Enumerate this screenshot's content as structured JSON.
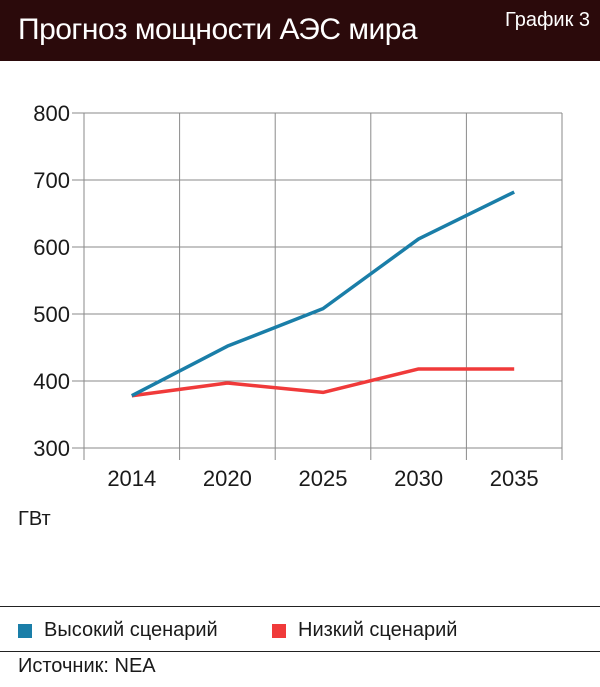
{
  "header": {
    "title": "Прогноз мощности АЭС мира",
    "chart_number": "График 3"
  },
  "unit_label": "ГВт",
  "source": "Источник: NEA",
  "colors": {
    "high": "#1a7ea8",
    "low": "#f03a3a",
    "header_bg": "#2b0a0b",
    "grid": "#8a8a8a"
  },
  "chart_data": {
    "type": "line",
    "categories": [
      "2014",
      "2020",
      "2025",
      "2030",
      "2035"
    ],
    "ylim": [
      300,
      800
    ],
    "yticks": [
      "300",
      "400",
      "500",
      "600",
      "700",
      "800"
    ],
    "grid": true,
    "legend_position": "bottom",
    "series": [
      {
        "name": "Высокий сценарий",
        "color": "#1a7ea8",
        "values": [
          378,
          452,
          508,
          612,
          682
        ]
      },
      {
        "name": "Низкий сценарий",
        "color": "#f03a3a",
        "values": [
          378,
          397,
          383,
          418,
          418
        ]
      }
    ]
  }
}
